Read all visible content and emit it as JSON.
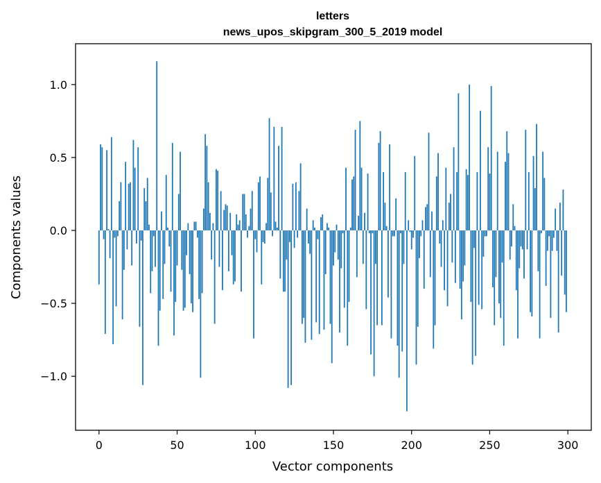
{
  "chart_data": {
    "type": "bar",
    "title": "letters",
    "subtitle": "news_upos_skipgram_300_5_2019 model",
    "xlabel": "Vector components",
    "ylabel": "Components values",
    "xlim": [
      -15,
      315
    ],
    "ylim": [
      -1.37,
      1.28
    ],
    "xticks": [
      0,
      50,
      100,
      150,
      200,
      250,
      300
    ],
    "xtick_labels": [
      "0",
      "50",
      "100",
      "150",
      "200",
      "250",
      "300"
    ],
    "yticks": [
      1.0,
      0.5,
      0.0,
      -0.5,
      -1.0
    ],
    "ytick_labels": [
      "1.0",
      "0.5",
      "0.0",
      "−0.5",
      "−1.0"
    ],
    "bar_color": "#1f77b4",
    "grid": false,
    "values": [
      -0.37,
      0.59,
      0.57,
      -0.06,
      -0.71,
      0.55,
      0.01,
      -0.19,
      0.64,
      -0.78,
      -0.05,
      -0.52,
      -0.04,
      0.2,
      0.33,
      -0.61,
      -0.27,
      0.47,
      -0.13,
      0.32,
      0.33,
      -0.24,
      0.62,
      0.43,
      -0.09,
      0.57,
      -0.66,
      -0.07,
      -1.06,
      0.29,
      0.2,
      0.36,
      0.04,
      -0.43,
      -0.28,
      -0.04,
      -0.25,
      1.16,
      -0.79,
      -0.55,
      0.13,
      -0.47,
      -0.23,
      0.38,
      0.02,
      -0.11,
      -0.42,
      0.6,
      -0.72,
      -0.49,
      -0.24,
      0.25,
      0.54,
      -0.27,
      -0.55,
      -0.53,
      -0.17,
      0.05,
      -0.3,
      -0.5,
      -0.56,
      0.06,
      0.06,
      -0.05,
      -0.47,
      -1.01,
      -0.43,
      0.15,
      0.66,
      0.58,
      0.33,
      0.12,
      -0.2,
      0.05,
      -0.64,
      0.42,
      0.41,
      -0.25,
      0.27,
      -0.41,
      0.14,
      0.18,
      0.17,
      -0.28,
      0.12,
      -0.17,
      -0.37,
      -0.35,
      0.11,
      0.04,
      0.07,
      -0.42,
      0.25,
      0.25,
      0.11,
      -0.05,
      0.03,
      0.15,
      0.27,
      -0.74,
      -0.06,
      -0.15,
      0.33,
      0.37,
      -0.37,
      -0.08,
      -0.09,
      0.05,
      0.36,
      0.77,
      0.26,
      -0.04,
      0.71,
      0.06,
      0.02,
      0.58,
      -0.33,
      0.71,
      -0.42,
      -0.42,
      -0.2,
      -1.08,
      -0.08,
      -1.06,
      0.32,
      -0.12,
      0.33,
      -0.05,
      0.27,
      0.46,
      -0.64,
      -0.6,
      -0.77,
      0.15,
      -0.09,
      -0.16,
      -0.75,
      0.07,
      0.02,
      -0.63,
      -0.06,
      -0.71,
      0.09,
      0.11,
      -0.68,
      -0.3,
      0.05,
      0.02,
      -0.64,
      -0.91,
      -0.24,
      -0.15,
      0.04,
      -0.2,
      -0.7,
      -0.26,
      -0.02,
      -0.53,
      0.43,
      -0.79,
      -0.49,
      0.02,
      0.35,
      0.37,
      0.69,
      -0.32,
      0.1,
      0.75,
      0.43,
      -0.23,
      0.12,
      -0.54,
      0.39,
      -0.02,
      -0.85,
      -0.02,
      -1.0,
      -0.23,
      -0.65,
      0.6,
      0.68,
      -0.65,
      0.4,
      0.19,
      0.03,
      -0.46,
      0.59,
      -0.74,
      -0.04,
      -0.04,
      0.22,
      -0.79,
      -1.01,
      -0.02,
      -0.83,
      -0.23,
      0.4,
      -1.24,
      0.07,
      -0.01,
      -0.13,
      -0.05,
      0.51,
      -0.92,
      -0.66,
      -0.19,
      -0.04,
      0.07,
      -0.4,
      0.16,
      0.18,
      0.67,
      -0.32,
      0.13,
      -0.81,
      -0.65,
      0.37,
      0.53,
      -0.09,
      -0.25,
      0.07,
      -0.41,
      0.43,
      -0.52,
      0.19,
      0.25,
      -0.22,
      0.57,
      -0.36,
      0.4,
      0.94,
      -0.4,
      -0.61,
      -0.35,
      -0.24,
      0.42,
      0.38,
      1.0,
      -0.49,
      -0.92,
      -0.12,
      -0.86,
      0.4,
      -0.51,
      0.82,
      -0.54,
      -0.18,
      -0.04,
      -0.04,
      0.57,
      0.39,
      0.99,
      -0.39,
      -0.65,
      -0.32,
      0.54,
      -0.5,
      -0.6,
      -0.22,
      -0.79,
      0.47,
      0.68,
      0.53,
      -0.2,
      -0.11,
      0.18,
      0.03,
      -0.41,
      -0.74,
      -0.26,
      -0.11,
      -0.13,
      -0.33,
      0.69,
      -0.13,
      0.4,
      -0.56,
      -0.59,
      0.51,
      0.29,
      0.73,
      -0.28,
      -0.74,
      -0.02,
      0.54,
      0.36,
      -0.38,
      -0.14,
      -0.04,
      -0.6,
      -0.14,
      -0.05,
      0.15,
      -0.14,
      -0.7,
      0.19,
      -0.31,
      0.28,
      -0.44,
      -0.56
    ]
  }
}
